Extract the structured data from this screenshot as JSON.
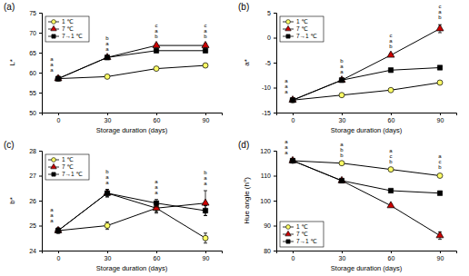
{
  "chart_data": [
    {
      "type": "line",
      "title": "(a)",
      "x_label": "Storage duration (days)",
      "y_label": "L*",
      "x": [
        0,
        30,
        60,
        90
      ],
      "xlim": [
        -10,
        100
      ],
      "xticks": [
        0,
        30,
        60,
        90
      ],
      "ylim": [
        50,
        75
      ],
      "yticks": [
        50,
        55,
        60,
        65,
        70,
        75
      ],
      "legend": "upper left",
      "series": [
        {
          "name": "1 ℃",
          "color": "#ffff66",
          "marker": "circle",
          "values": [
            58.5,
            59.0,
            61.0,
            61.8
          ],
          "errors": [
            0.3,
            0.3,
            0.4,
            0.4
          ]
        },
        {
          "name": "7 ℃",
          "color": "#cc0000",
          "marker": "triangle",
          "values": [
            58.5,
            63.8,
            66.8,
            66.8
          ],
          "errors": [
            0.3,
            0.4,
            0.4,
            0.5
          ]
        },
        {
          "name": "7→1 ℃",
          "color": "#000000",
          "marker": "square",
          "values": [
            58.5,
            63.8,
            65.5,
            65.5
          ],
          "errors": [
            0.3,
            0.4,
            0.4,
            0.4
          ]
        }
      ],
      "annotations": [
        {
          "x": 0,
          "letters": [
            "a",
            "a",
            "a"
          ]
        },
        {
          "x": 30,
          "letters": [
            "b",
            "a",
            "a"
          ]
        },
        {
          "x": 60,
          "letters": [
            "c",
            "a",
            "b"
          ]
        },
        {
          "x": 90,
          "letters": [
            "c",
            "a",
            "b"
          ]
        }
      ]
    },
    {
      "type": "line",
      "title": "(b)",
      "x_label": "Storage duration (days)",
      "y_label": "a*",
      "x": [
        0,
        30,
        60,
        90
      ],
      "xlim": [
        -10,
        100
      ],
      "xticks": [
        0,
        30,
        60,
        90
      ],
      "ylim": [
        -15,
        5
      ],
      "yticks": [
        -15,
        -10,
        -5,
        0,
        5
      ],
      "legend": "upper left",
      "series": [
        {
          "name": "1 ℃",
          "color": "#ffff66",
          "marker": "circle",
          "values": [
            -12.5,
            -11.5,
            -10.5,
            -9.0
          ],
          "errors": [
            0.2,
            0.2,
            0.3,
            0.3
          ]
        },
        {
          "name": "7 ℃",
          "color": "#cc0000",
          "marker": "triangle",
          "values": [
            -12.5,
            -8.5,
            -3.5,
            1.8
          ],
          "errors": [
            0.2,
            0.3,
            0.3,
            0.8
          ]
        },
        {
          "name": "7→1 ℃",
          "color": "#000000",
          "marker": "square",
          "values": [
            -12.5,
            -8.5,
            -6.5,
            -6.0
          ],
          "errors": [
            0.2,
            0.3,
            0.3,
            0.3
          ]
        }
      ],
      "annotations": [
        {
          "x": 0,
          "letters": [
            "a",
            "a",
            "a"
          ]
        },
        {
          "x": 30,
          "letters": [
            "b",
            "a",
            "a"
          ]
        },
        {
          "x": 60,
          "letters": [
            "c",
            "a",
            "b"
          ]
        },
        {
          "x": 90,
          "letters": [
            "c",
            "a",
            "b"
          ]
        }
      ]
    },
    {
      "type": "line",
      "title": "(c)",
      "x_label": "Storage duration (days)",
      "y_label": "b*",
      "x": [
        0,
        30,
        60,
        90
      ],
      "xlim": [
        -10,
        100
      ],
      "xticks": [
        0,
        30,
        60,
        90
      ],
      "ylim": [
        24,
        28
      ],
      "yticks": [
        24,
        25,
        26,
        27,
        28
      ],
      "legend": "upper left",
      "series": [
        {
          "name": "1 ℃",
          "color": "#ffff66",
          "marker": "circle",
          "values": [
            24.8,
            25.0,
            25.7,
            24.5
          ],
          "errors": [
            0.1,
            0.15,
            0.15,
            0.2
          ]
        },
        {
          "name": "7 ℃",
          "color": "#cc0000",
          "marker": "triangle",
          "values": [
            24.8,
            26.3,
            25.7,
            25.9
          ],
          "errors": [
            0.1,
            0.15,
            0.2,
            0.5
          ]
        },
        {
          "name": "7→1 ℃",
          "color": "#000000",
          "marker": "square",
          "values": [
            24.8,
            26.3,
            25.9,
            25.6
          ],
          "errors": [
            0.1,
            0.15,
            0.15,
            0.2
          ]
        }
      ],
      "annotations": [
        {
          "x": 0,
          "letters": [
            "a",
            "a",
            "a"
          ]
        },
        {
          "x": 30,
          "letters": [
            "b",
            "a",
            "a"
          ]
        },
        {
          "x": 60,
          "letters": [
            "a",
            "a",
            "a"
          ]
        },
        {
          "x": 90,
          "letters": [
            "b",
            "a",
            "a"
          ]
        }
      ]
    },
    {
      "type": "line",
      "title": "(d)",
      "x_label": "Storage duration (days)",
      "y_label": "Hue angle (h°)",
      "x": [
        0,
        30,
        60,
        90
      ],
      "xlim": [
        -10,
        100
      ],
      "xticks": [
        0,
        30,
        60,
        90
      ],
      "ylim": [
        80,
        120
      ],
      "yticks": [
        80,
        90,
        100,
        110,
        120
      ],
      "legend": "lower left",
      "series": [
        {
          "name": "1 ℃",
          "color": "#ffff66",
          "marker": "circle",
          "values": [
            116,
            115,
            112.5,
            110
          ],
          "errors": [
            0.3,
            0.3,
            0.4,
            0.4
          ]
        },
        {
          "name": "7 ℃",
          "color": "#cc0000",
          "marker": "triangle",
          "values": [
            116,
            108,
            98,
            86
          ],
          "errors": [
            0.3,
            0.4,
            0.5,
            1.5
          ]
        },
        {
          "name": "7→1 ℃",
          "color": "#000000",
          "marker": "square",
          "values": [
            116,
            108,
            104,
            103
          ],
          "errors": [
            0.3,
            0.4,
            0.4,
            0.4
          ]
        }
      ],
      "annotations": [
        {
          "x": 0,
          "letters": [
            "a",
            "a",
            "a"
          ]
        },
        {
          "x": 30,
          "letters": [
            "a",
            "b",
            "b"
          ]
        },
        {
          "x": 60,
          "letters": [
            "a",
            "c",
            "b"
          ]
        },
        {
          "x": 90,
          "letters": [
            "a",
            "c",
            "b"
          ]
        }
      ]
    }
  ]
}
